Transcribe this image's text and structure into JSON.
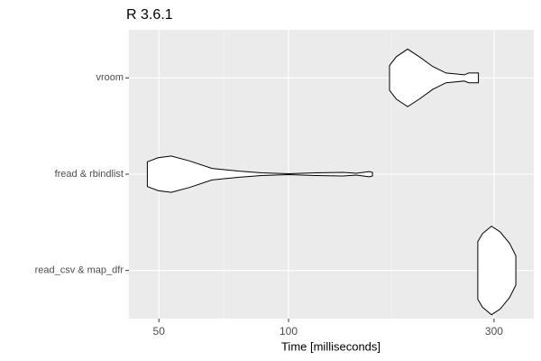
{
  "chart_data": {
    "type": "violin",
    "title": "R 3.6.1",
    "x_label": "Time [milliseconds]",
    "categories": [
      "vroom",
      "fread & rbindlist",
      "read_csv & map_dfr"
    ],
    "violins": [
      {
        "x": [
          171.6,
          178,
          189,
          201,
          216,
          232,
          244,
          256,
          262,
          276
        ],
        "widths": [
          0.28,
          0.48,
          0.65,
          0.48,
          0.26,
          0.11,
          0.09,
          0.07,
          0.11,
          0.11
        ]
      },
      {
        "x": [
          47,
          49.8,
          53.4,
          58.9,
          66.4,
          76.8,
          86.6,
          100,
          115.6,
          133.6,
          143.6,
          154,
          156.6
        ],
        "widths": [
          0.28,
          0.37,
          0.41,
          0.3,
          0.13,
          0.07,
          0.03,
          0.01,
          0.03,
          0.04,
          0.02,
          0.06,
          0.04
        ]
      },
      {
        "x": [
          275,
          282,
          296,
          310,
          326,
          337
        ],
        "widths": [
          0.65,
          0.83,
          1,
          0.87,
          0.61,
          0.33
        ]
      }
    ],
    "fill": "#ffffff",
    "color": "#000000",
    "xlim": [
      42.6,
      371
    ],
    "xticks": [
      50,
      100,
      300
    ],
    "minor_xticks": [
      70.7,
      173.2
    ],
    "log_x": true,
    "grid": true
  }
}
